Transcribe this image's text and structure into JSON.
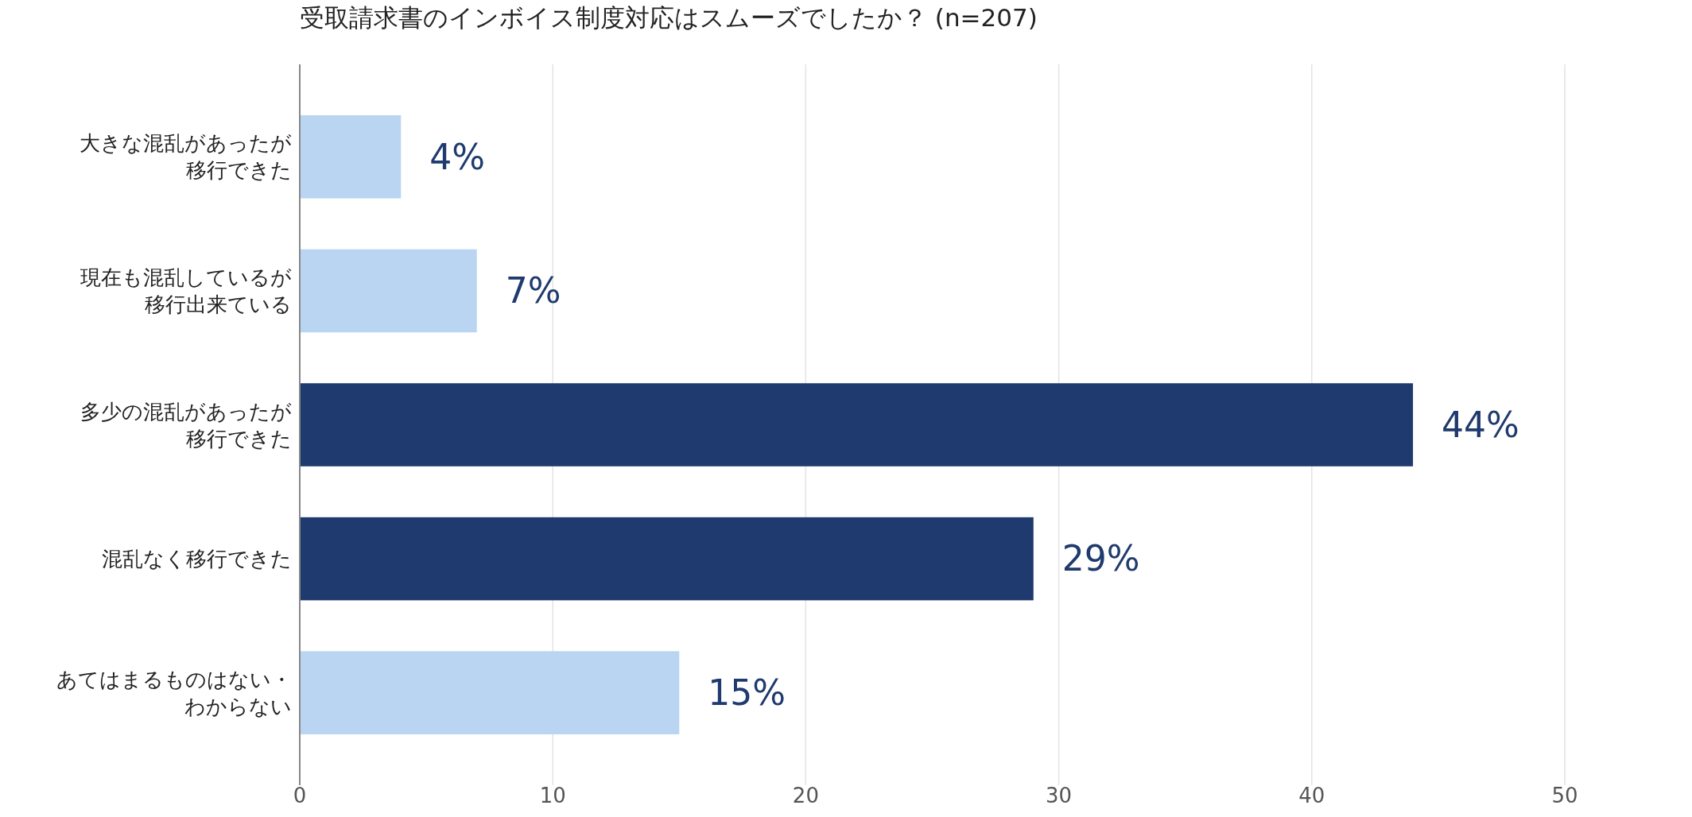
{
  "chart_data": {
    "type": "bar",
    "orientation": "horizontal",
    "title": "受取請求書のインボイス制度対応はスムーズでしたか？ (n=207)",
    "categories": [
      "大きな混乱があったが移行できた",
      "現在も混乱しているが移行出来ている",
      "多少の混乱があったが移行できた",
      "混乱なく移行できた",
      "あてはまるものはない・わからない"
    ],
    "values": [
      4,
      7,
      44,
      29,
      15
    ],
    "colors": [
      "#b9d5f1",
      "#b9d5f1",
      "#1f3a6e",
      "#1f3a6e",
      "#b9d5f1"
    ],
    "value_labels": [
      "4%",
      "7%",
      "44%",
      "29%",
      "15%"
    ],
    "xlim": [
      0,
      50
    ],
    "xticks": [
      0,
      10,
      20,
      30,
      40,
      50
    ],
    "grid": "x"
  }
}
